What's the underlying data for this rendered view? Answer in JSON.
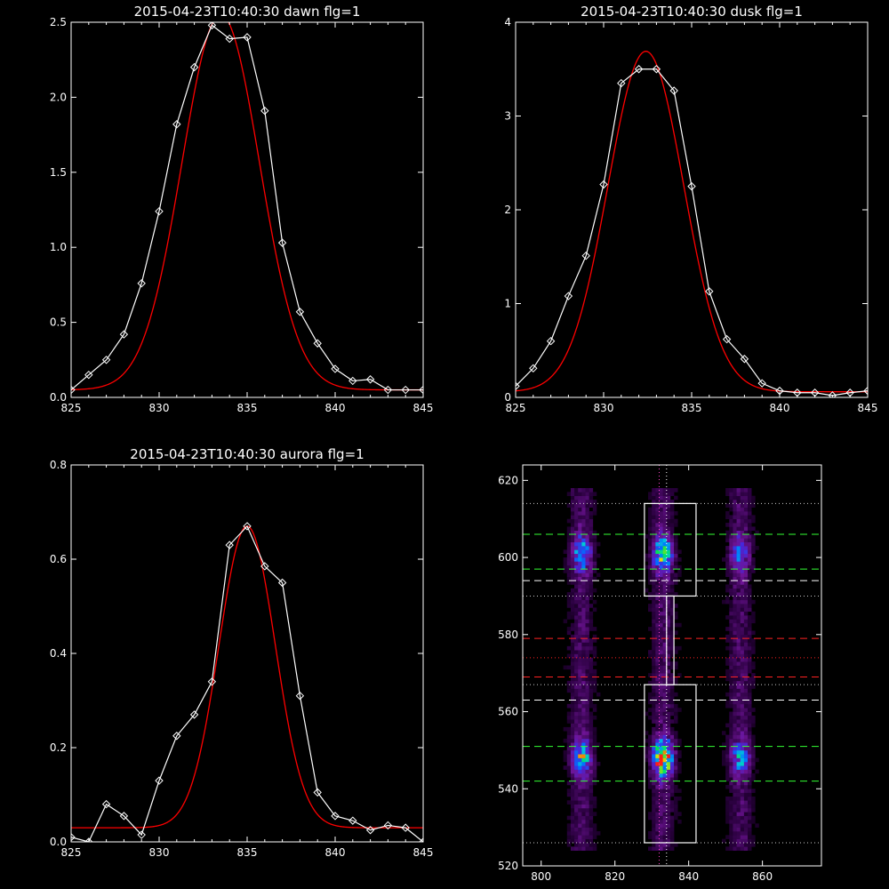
{
  "chart_data": [
    {
      "type": "line",
      "title": "2015-04-23T10:40:30 dawn flg=1",
      "xlabel": "",
      "ylabel": "",
      "xlim": [
        825,
        845
      ],
      "ylim": [
        0,
        2.5
      ],
      "xticks": [
        825,
        830,
        835,
        840,
        845
      ],
      "yticks": [
        0.0,
        0.5,
        1.0,
        1.5,
        2.0,
        2.5
      ],
      "ytick_labels": [
        "0.0",
        "0.5",
        "1.0",
        "1.5",
        "2.0",
        "2.5"
      ],
      "series": [
        {
          "color": "#ffffff",
          "marker": "diamond",
          "x": [
            825,
            826,
            827,
            828,
            829,
            830,
            831,
            832,
            833,
            834,
            835,
            836,
            837,
            838,
            839,
            840,
            841,
            842,
            843,
            844,
            845
          ],
          "y": [
            0.05,
            0.15,
            0.25,
            0.42,
            0.76,
            1.24,
            1.82,
            2.2,
            2.48,
            2.39,
            2.4,
            1.91,
            1.03,
            0.57,
            0.36,
            0.19,
            0.11,
            0.12,
            0.05,
            0.05,
            0.05
          ]
        },
        {
          "color": "#ff0000",
          "fit": "gaussian",
          "amp": 2.5,
          "center": 833.5,
          "sigma": 2.2,
          "base": 0.05
        }
      ]
    },
    {
      "type": "line",
      "title": "2015-04-23T10:40:30 dusk flg=1",
      "xlabel": "",
      "ylabel": "",
      "xlim": [
        825,
        845
      ],
      "ylim": [
        0,
        4
      ],
      "xticks": [
        825,
        830,
        835,
        840,
        845
      ],
      "yticks": [
        0,
        1,
        2,
        3,
        4
      ],
      "ytick_labels": [
        "0",
        "1",
        "2",
        "3",
        "4"
      ],
      "series": [
        {
          "color": "#ffffff",
          "marker": "diamond",
          "x": [
            825,
            826,
            827,
            828,
            829,
            830,
            831,
            832,
            833,
            834,
            835,
            836,
            837,
            838,
            839,
            840,
            841,
            842,
            843,
            844,
            845
          ],
          "y": [
            0.12,
            0.31,
            0.6,
            1.08,
            1.51,
            2.27,
            3.35,
            3.5,
            3.5,
            3.27,
            2.25,
            1.13,
            0.62,
            0.41,
            0.15,
            0.07,
            0.05,
            0.05,
            0.02,
            0.05,
            0.07
          ]
        },
        {
          "color": "#ff0000",
          "fit": "gaussian",
          "amp": 3.63,
          "center": 832.4,
          "sigma": 2.15,
          "base": 0.06
        }
      ]
    },
    {
      "type": "line",
      "title": "2015-04-23T10:40:30 aurora flg=1",
      "xlabel": "",
      "ylabel": "",
      "xlim": [
        825,
        845
      ],
      "ylim": [
        0,
        0.8
      ],
      "xticks": [
        825,
        830,
        835,
        840,
        845
      ],
      "yticks": [
        0.0,
        0.2,
        0.4,
        0.6,
        0.8
      ],
      "ytick_labels": [
        "0.0",
        "0.2",
        "0.4",
        "0.6",
        "0.8"
      ],
      "series": [
        {
          "color": "#ffffff",
          "marker": "diamond",
          "x": [
            825,
            826,
            827,
            828,
            829,
            830,
            831,
            832,
            833,
            834,
            835,
            836,
            837,
            838,
            839,
            840,
            841,
            842,
            843,
            844,
            845
          ],
          "y": [
            0.01,
            0.0,
            0.08,
            0.055,
            0.015,
            0.13,
            0.225,
            0.27,
            0.34,
            0.63,
            0.67,
            0.585,
            0.55,
            0.31,
            0.105,
            0.055,
            0.045,
            0.025,
            0.035,
            0.03,
            0.0
          ]
        },
        {
          "color": "#ff0000",
          "fit": "gaussian",
          "amp": 0.64,
          "center": 835.0,
          "sigma": 1.6,
          "base": 0.03
        }
      ]
    },
    {
      "type": "heatmap",
      "title": "",
      "xlabel": "",
      "ylabel": "",
      "xlim": [
        795,
        876
      ],
      "ylim": [
        520,
        624
      ],
      "xticks": [
        800,
        820,
        840,
        860
      ],
      "yticks": [
        520,
        540,
        560,
        580,
        600,
        620
      ],
      "colormap": "rainbow-on-black",
      "emission_columns_x": [
        811,
        833,
        854
      ],
      "bright_spots": [
        {
          "x": 811,
          "y": 601,
          "peak": 0.55
        },
        {
          "x": 811,
          "y": 548,
          "peak": 0.6
        },
        {
          "x": 833,
          "y": 601,
          "peak": 0.7
        },
        {
          "x": 833,
          "y": 548,
          "peak": 1.0
        },
        {
          "x": 854,
          "y": 601,
          "peak": 0.35
        },
        {
          "x": 854,
          "y": 548,
          "peak": 0.45
        }
      ],
      "boxes": [
        {
          "x0": 828,
          "x1": 842,
          "y0": 590,
          "y1": 614,
          "color": "#ffffff"
        },
        {
          "x0": 828,
          "x1": 842,
          "y0": 526,
          "y1": 567,
          "color": "#ffffff"
        },
        {
          "x0": 834,
          "x1": 836,
          "y0": 567,
          "y1": 590,
          "color": "#ffffff"
        }
      ],
      "hlines": [
        {
          "y": 614,
          "color": "#cccccc",
          "style": "dotted"
        },
        {
          "y": 606,
          "color": "#33ff33",
          "style": "dashed"
        },
        {
          "y": 597,
          "color": "#33ff33",
          "style": "dashed"
        },
        {
          "y": 594,
          "color": "#ffffff",
          "style": "dashed"
        },
        {
          "y": 590,
          "color": "#cccccc",
          "style": "dotted"
        },
        {
          "y": 579,
          "color": "#ff2222",
          "style": "dashed"
        },
        {
          "y": 574,
          "color": "#ff2222",
          "style": "dotted"
        },
        {
          "y": 569,
          "color": "#ff2222",
          "style": "dashed"
        },
        {
          "y": 567,
          "color": "#cccccc",
          "style": "dotted"
        },
        {
          "y": 563,
          "color": "#ffffff",
          "style": "dashed"
        },
        {
          "y": 551,
          "color": "#33ff33",
          "style": "dashed"
        },
        {
          "y": 542,
          "color": "#33ff33",
          "style": "dashed"
        },
        {
          "y": 526,
          "color": "#cccccc",
          "style": "dotted"
        }
      ],
      "vlines": [
        {
          "x": 832,
          "color": "#ff44cc",
          "style": "dotted"
        },
        {
          "x": 834,
          "color": "#ffffff",
          "style": "dotted"
        }
      ]
    }
  ]
}
